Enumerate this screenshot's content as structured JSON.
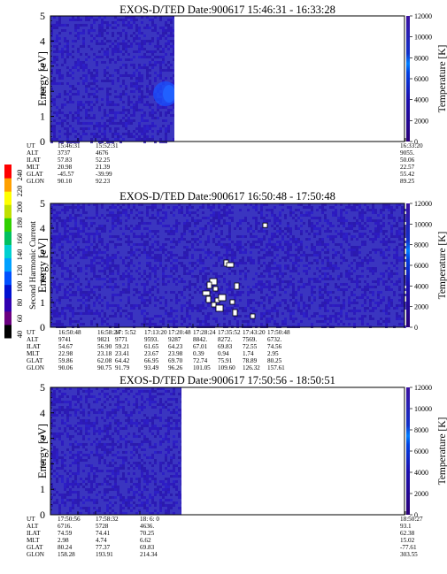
{
  "chart_data": [
    {
      "type": "heatmap",
      "title": "EXOS-D/TED   Date:900617  15:46:31 - 16:33:28",
      "ylabel": "Energy [eV]",
      "y2label": "Temperature [K]",
      "ylim": [
        0,
        5
      ],
      "yticks": [
        "0",
        "1",
        "2",
        "3",
        "4",
        "5"
      ],
      "clim": [
        0,
        12000
      ],
      "cticks": [
        "0",
        "2000",
        "4000",
        "6000",
        "8000",
        "10000",
        "12000"
      ],
      "data_fraction": 0.35,
      "features": [
        {
          "y": 1.9,
          "level": 0.58,
          "note": "brighter blue band near data edge"
        }
      ],
      "orbit_table": {
        "rows": [
          "UT",
          "ALT",
          "ILAT",
          "MLT",
          "GLAT",
          "GLON"
        ],
        "columns": [
          [
            "15:46:31",
            "3737",
            "57.83",
            "20.98",
            "-45.57",
            "90.10"
          ],
          [
            "15:52:31",
            "4676",
            "52.25",
            "21.39",
            "-39.99",
            "92.23"
          ],
          [
            "16:33:20",
            "9055.",
            "50.06",
            "22.57",
            "55.42",
            "89.25"
          ]
        ]
      }
    },
    {
      "type": "heatmap",
      "title": "EXOS-D/TED   Date:900617  16:50:48 - 17:50:48",
      "ylabel": "Energy [eV]",
      "y2label": "Temperature [K]",
      "ylim": [
        0,
        5
      ],
      "yticks": [
        "0",
        "1",
        "2",
        "3",
        "4",
        "5"
      ],
      "clim": [
        0,
        12000
      ],
      "cticks": [
        "0",
        "2000",
        "4000",
        "6000",
        "8000",
        "10000",
        "12000"
      ],
      "data_fraction": 1.0,
      "features": [
        {
          "y": 1.5,
          "level": 1.0,
          "note": "saturated patches around 17:20"
        },
        {
          "y": 4.1,
          "level": 1.0,
          "note": "isolated saturated point"
        }
      ],
      "orbit_table": {
        "rows": [
          "UT",
          "ALT",
          "ILAT",
          "MLT",
          "GLAT",
          "GLON"
        ],
        "columns": [
          [
            "16:50:48",
            "9741",
            "54.67",
            "22.98",
            "59.86",
            "90.06"
          ],
          [
            "16:58:24",
            "9821",
            "56.90",
            "23.18",
            "62.08",
            "90.75"
          ],
          [
            "17: 5:52",
            "9771",
            "59.21",
            "23.41",
            "64.42",
            "91.79"
          ],
          [
            "17:13:20",
            "9593.",
            "61.65",
            "23.67",
            "66.95",
            "93.49"
          ],
          [
            "17:20:48",
            "9287",
            "64.23",
            "23.98",
            "69.70",
            "96.26"
          ],
          [
            "17:28:24",
            "8842.",
            "67.01",
            "0.39",
            "72.74",
            "101.05"
          ],
          [
            "17:35:52",
            "8272.",
            "69.83",
            "0.94",
            "75.91",
            "109.60"
          ],
          [
            "17:43:20",
            "7569.",
            "72.55",
            "1.74",
            "78.89",
            "126.32"
          ],
          [
            "17:50:48",
            "6732.",
            "74.56",
            "2.95",
            "80.25",
            "157.61"
          ]
        ]
      }
    },
    {
      "type": "heatmap",
      "title": "EXOS-D/TED   Date:900617  17:50:56 - 18:50:51",
      "ylabel": "Energy [eV]",
      "y2label": "Temperature [K]",
      "ylim": [
        0,
        5
      ],
      "yticks": [
        "0",
        "1",
        "2",
        "3",
        "4",
        "5"
      ],
      "clim": [
        0,
        12000
      ],
      "cticks": [
        "0",
        "2000",
        "4000",
        "6000",
        "8000",
        "10000",
        "12000"
      ],
      "data_fraction": 0.37,
      "features": [],
      "orbit_table": {
        "rows": [
          "UT",
          "ALT",
          "ILAT",
          "MLT",
          "GLAT",
          "GLON"
        ],
        "columns": [
          [
            "17:50:56",
            "6716.",
            "74.59",
            "2.98",
            "80.24",
            "158.28"
          ],
          [
            "17:58:32",
            "5728",
            "74.41",
            "4.74",
            "77.37",
            "193.91"
          ],
          [
            "18: 6: 0",
            "4636.",
            "70.25",
            "6.62",
            "69.83",
            "214.34"
          ],
          [
            "18:50:27",
            "93.1",
            "62.38",
            "15.02",
            "-77.61",
            "303.55"
          ]
        ]
      }
    }
  ],
  "harmonic_scale": {
    "label": "Second Harmonic Current",
    "ticks": [
      "40",
      "60",
      "80",
      "100",
      "120",
      "140",
      "160",
      "180",
      "200",
      "220",
      "240"
    ],
    "colors": [
      "#000000",
      "#6a0080",
      "#3000b0",
      "#0010d0",
      "#0050ff",
      "#00a0ff",
      "#00d0d0",
      "#00c060",
      "#30d000",
      "#c0e000",
      "#ffff00",
      "#ffa000",
      "#ff0000"
    ]
  },
  "colors": {
    "background_level": "#3030c8",
    "empty_region": "#ffffff"
  }
}
